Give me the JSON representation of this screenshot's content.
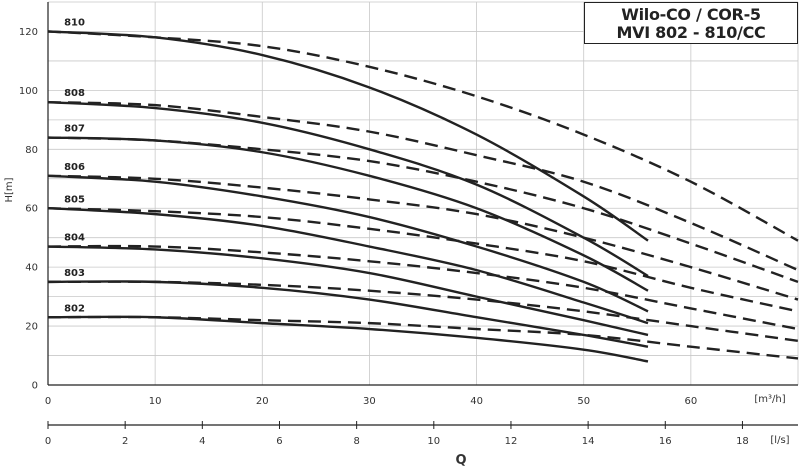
{
  "title": [
    "Wilo-CO / COR-5",
    "MVI 802 - 810/CC"
  ],
  "chart_data": {
    "type": "line",
    "ylabel": "H[m]",
    "xlabel": "Q",
    "x_unit_top": "[m³/h]",
    "x_unit_bottom": "[l/s]",
    "xlim_m3h": [
      0,
      70
    ],
    "xlim_ls": [
      0,
      19.44
    ],
    "ylim": [
      0,
      130
    ],
    "grid": true,
    "x_ticks_m3h": [
      "0",
      "10",
      "20",
      "30",
      "40",
      "50",
      "60"
    ],
    "x_ticks_ls": [
      "0",
      "2",
      "4",
      "6",
      "8",
      "10",
      "12",
      "14",
      "16",
      "18"
    ],
    "y_ticks": [
      "0",
      "20",
      "40",
      "60",
      "80",
      "100",
      "120"
    ],
    "series": [
      {
        "name": "810",
        "style": "solid",
        "x": [
          0,
          10,
          20,
          30,
          40,
          50,
          56
        ],
        "y": [
          120,
          118,
          112,
          101,
          85,
          64,
          49
        ]
      },
      {
        "name": "810",
        "style": "dashed",
        "x": [
          0,
          10,
          20,
          30,
          40,
          50,
          60,
          70
        ],
        "y": [
          120,
          118,
          115,
          108,
          98,
          85,
          69,
          49
        ]
      },
      {
        "name": "808",
        "style": "solid",
        "x": [
          0,
          10,
          20,
          30,
          40,
          50,
          56
        ],
        "y": [
          96,
          94,
          89,
          80,
          68,
          50,
          37
        ]
      },
      {
        "name": "808",
        "style": "dashed",
        "x": [
          0,
          10,
          20,
          30,
          40,
          50,
          60,
          70
        ],
        "y": [
          96,
          95,
          91,
          86,
          78,
          69,
          55,
          39
        ]
      },
      {
        "name": "807",
        "style": "solid",
        "x": [
          0,
          10,
          20,
          30,
          40,
          50,
          56
        ],
        "y": [
          84,
          83,
          79,
          71,
          60,
          44,
          32
        ]
      },
      {
        "name": "807",
        "style": "dashed",
        "x": [
          0,
          10,
          20,
          30,
          40,
          50,
          60,
          70
        ],
        "y": [
          84,
          83,
          80,
          76,
          69,
          60,
          48,
          35
        ]
      },
      {
        "name": "806",
        "style": "solid",
        "x": [
          0,
          10,
          20,
          30,
          40,
          50,
          56
        ],
        "y": [
          71,
          69,
          64,
          57,
          47,
          35,
          25
        ]
      },
      {
        "name": "806",
        "style": "dashed",
        "x": [
          0,
          10,
          20,
          30,
          40,
          50,
          60,
          70
        ],
        "y": [
          71,
          70,
          67,
          63,
          58,
          50,
          40,
          29
        ]
      },
      {
        "name": "805",
        "style": "solid",
        "x": [
          0,
          10,
          20,
          30,
          40,
          50,
          56
        ],
        "y": [
          60,
          58,
          54,
          47,
          39,
          28,
          21
        ]
      },
      {
        "name": "805",
        "style": "dashed",
        "x": [
          0,
          10,
          20,
          30,
          40,
          50,
          60,
          70
        ],
        "y": [
          60,
          59,
          57,
          53,
          48,
          42,
          33,
          25
        ]
      },
      {
        "name": "804",
        "style": "solid",
        "x": [
          0,
          10,
          20,
          30,
          40,
          50,
          56
        ],
        "y": [
          47,
          46,
          43,
          38,
          30,
          22,
          17
        ]
      },
      {
        "name": "804",
        "style": "dashed",
        "x": [
          0,
          10,
          20,
          30,
          40,
          50,
          60,
          70
        ],
        "y": [
          47,
          47,
          45,
          42,
          38,
          33,
          26,
          19
        ]
      },
      {
        "name": "803",
        "style": "solid",
        "x": [
          0,
          10,
          20,
          30,
          40,
          50,
          56
        ],
        "y": [
          35,
          35,
          33,
          29,
          23,
          17,
          13
        ]
      },
      {
        "name": "803",
        "style": "dashed",
        "x": [
          0,
          10,
          20,
          30,
          40,
          50,
          60,
          70
        ],
        "y": [
          35,
          35,
          34,
          32,
          29,
          25,
          20,
          15
        ]
      },
      {
        "name": "802",
        "style": "solid",
        "x": [
          0,
          10,
          20,
          30,
          40,
          50,
          56
        ],
        "y": [
          23,
          23,
          21,
          19,
          16,
          12,
          8
        ]
      },
      {
        "name": "802",
        "style": "dashed",
        "x": [
          0,
          10,
          20,
          30,
          40,
          50,
          60,
          70
        ],
        "y": [
          23,
          23,
          22,
          21,
          19,
          17,
          13,
          9
        ]
      }
    ],
    "curve_labels": [
      {
        "text": "810",
        "x": 1.5,
        "y": 121
      },
      {
        "text": "808",
        "x": 1.5,
        "y": 97
      },
      {
        "text": "807",
        "x": 1.5,
        "y": 85
      },
      {
        "text": "806",
        "x": 1.5,
        "y": 72
      },
      {
        "text": "805",
        "x": 1.5,
        "y": 61
      },
      {
        "text": "804",
        "x": 1.5,
        "y": 48
      },
      {
        "text": "803",
        "x": 1.5,
        "y": 36
      },
      {
        "text": "802",
        "x": 1.5,
        "y": 24
      }
    ]
  }
}
